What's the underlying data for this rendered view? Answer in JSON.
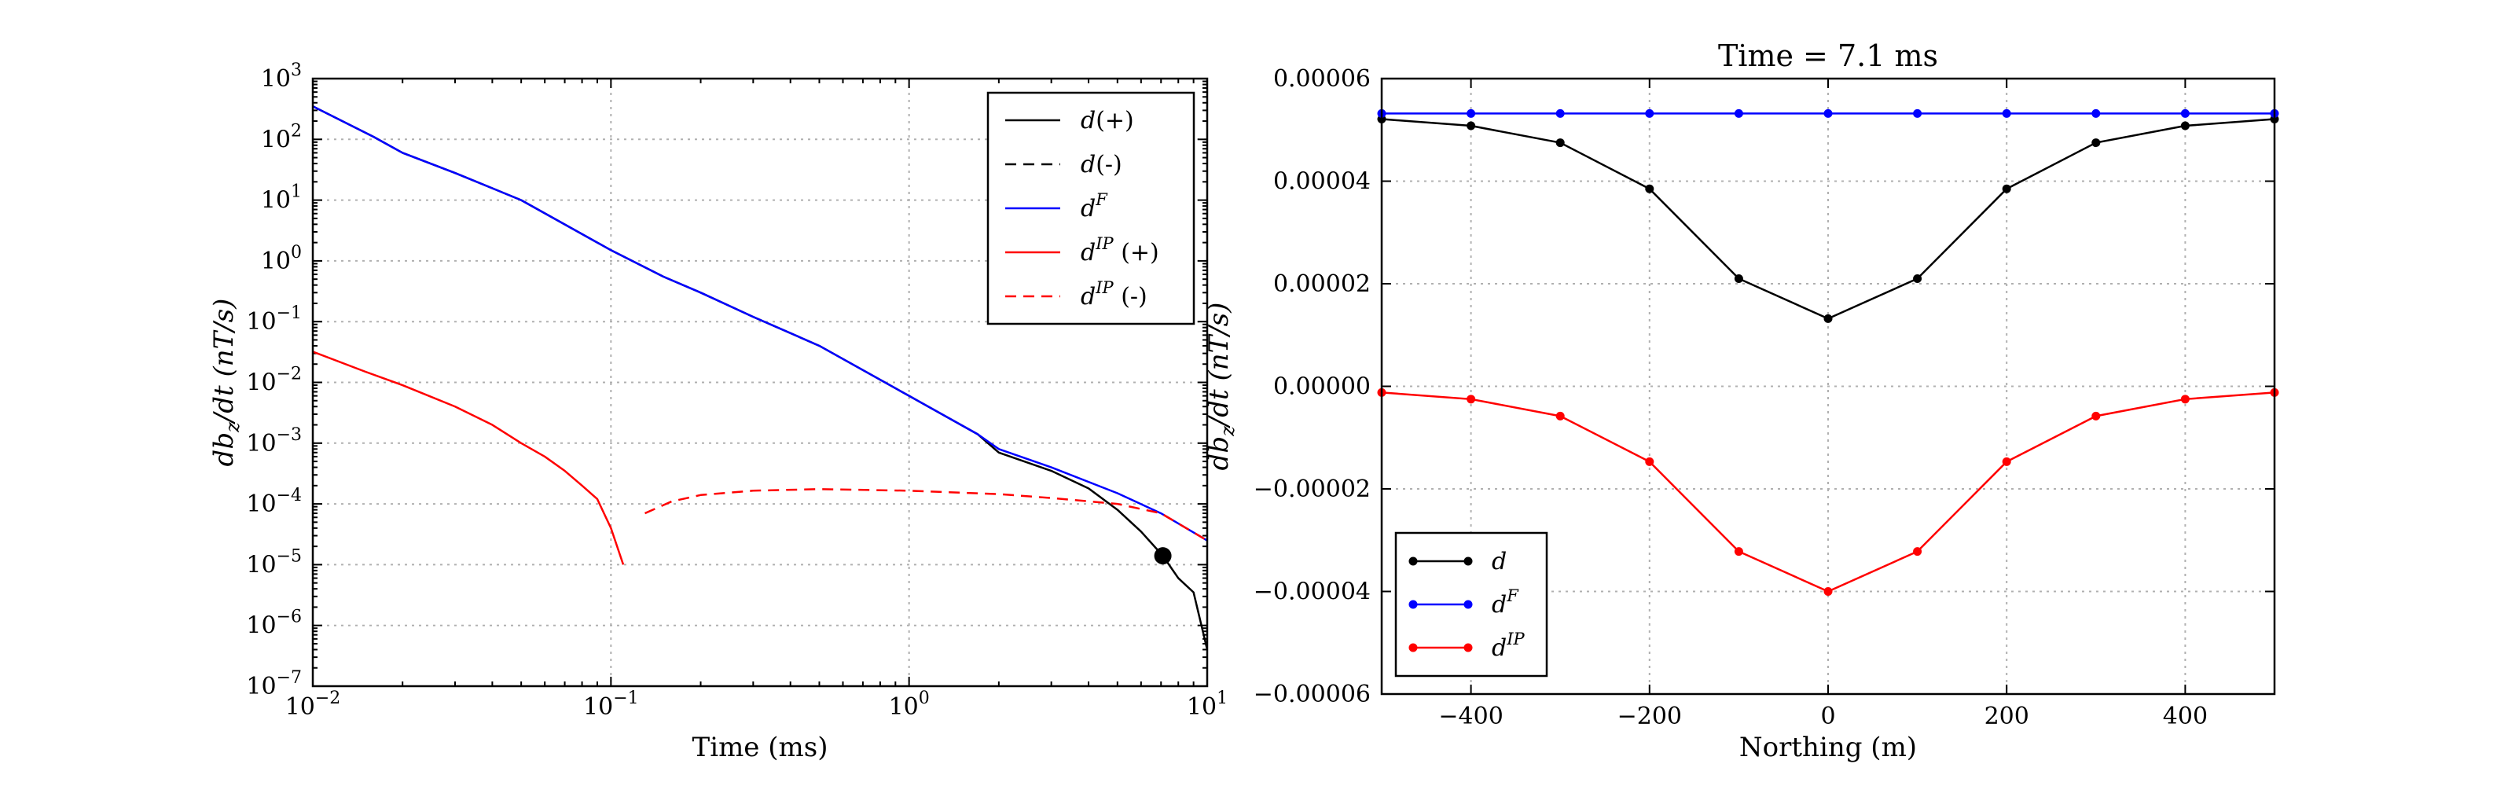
{
  "chart_data": [
    {
      "type": "line",
      "title": "",
      "xlabel": "Time (ms)",
      "ylabel": "db_z/dt (nT/s)",
      "xscale": "log",
      "yscale": "log",
      "xlim": [
        0.01,
        10
      ],
      "ylim": [
        1e-07,
        1000
      ],
      "grid": true,
      "legend_position": "top-right",
      "x_ticks": [
        {
          "v": 0.01,
          "b": "10",
          "e": "−2"
        },
        {
          "v": 0.1,
          "b": "10",
          "e": "−1"
        },
        {
          "v": 1,
          "b": "10",
          "e": "0"
        },
        {
          "v": 10,
          "b": "10",
          "e": "1"
        }
      ],
      "y_ticks": [
        {
          "v": 1e-07,
          "b": "10",
          "e": "−7"
        },
        {
          "v": 1e-06,
          "b": "10",
          "e": "−6"
        },
        {
          "v": 1e-05,
          "b": "10",
          "e": "−5"
        },
        {
          "v": 0.0001,
          "b": "10",
          "e": "−4"
        },
        {
          "v": 0.001,
          "b": "10",
          "e": "−3"
        },
        {
          "v": 0.01,
          "b": "10",
          "e": "−2"
        },
        {
          "v": 0.1,
          "b": "10",
          "e": "−1"
        },
        {
          "v": 1,
          "b": "10",
          "e": "0"
        },
        {
          "v": 10,
          "b": "10",
          "e": "1"
        },
        {
          "v": 100,
          "b": "10",
          "e": "2"
        },
        {
          "v": 1000,
          "b": "10",
          "e": "3"
        }
      ],
      "series": [
        {
          "name": "d(+)",
          "legend": {
            "base": "d",
            "sup": "",
            "suffix": "(+)"
          },
          "color": "#000000",
          "dash": false,
          "x": [
            0.01,
            0.016,
            0.02,
            0.03,
            0.05,
            0.1,
            0.15,
            0.2,
            0.3,
            0.5,
            1,
            1.7,
            2,
            3,
            4,
            5,
            6,
            7.1,
            8,
            9,
            10
          ],
          "y": [
            350,
            110,
            60,
            28,
            10,
            1.5,
            0.55,
            0.3,
            0.12,
            0.04,
            0.006,
            0.0014,
            0.0007,
            0.00035,
            0.00018,
            8e-05,
            3.5e-05,
            1.4e-05,
            6e-06,
            3.5e-06,
            4e-07
          ]
        },
        {
          "name": "d(-)",
          "legend": {
            "base": "d",
            "sup": "",
            "suffix": "(-)"
          },
          "color": "#000000",
          "dash": true,
          "x": [],
          "y": []
        },
        {
          "name": "d^F",
          "legend": {
            "base": "d",
            "sup": "F",
            "suffix": ""
          },
          "color": "#0000ff",
          "dash": false,
          "x": [
            0.01,
            0.016,
            0.02,
            0.03,
            0.05,
            0.1,
            0.15,
            0.2,
            0.3,
            0.5,
            1,
            1.7,
            2,
            3,
            5,
            7,
            10
          ],
          "y": [
            350,
            110,
            60,
            28,
            10,
            1.5,
            0.55,
            0.3,
            0.12,
            0.04,
            0.006,
            0.0014,
            0.0008,
            0.0004,
            0.00015,
            7e-05,
            2.5e-05
          ]
        },
        {
          "name": "d^IP(+)",
          "legend": {
            "base": "d",
            "sup": "IP",
            "suffix": "(+)"
          },
          "color": "#ff0000",
          "dash": false,
          "x": [
            0.01,
            0.015,
            0.02,
            0.03,
            0.04,
            0.05,
            0.06,
            0.07,
            0.08,
            0.09,
            0.1,
            0.11
          ],
          "y": [
            0.032,
            0.015,
            0.009,
            0.004,
            0.002,
            0.001,
            0.0006,
            0.00035,
            0.0002,
            0.00012,
            4e-05,
            1e-05
          ]
        },
        {
          "name": "d^IP(-)",
          "legend": {
            "base": "d",
            "sup": "IP",
            "suffix": "(-)"
          },
          "color": "#ff0000",
          "dash": true,
          "x": [
            0.13,
            0.16,
            0.2,
            0.3,
            0.5,
            1,
            2,
            3,
            5,
            7,
            10
          ],
          "y": [
            7e-05,
            0.00011,
            0.00014,
            0.000165,
            0.000175,
            0.000165,
            0.000145,
            0.000125,
            0.0001,
            7e-05,
            2.5e-05
          ]
        }
      ],
      "annotations": [
        {
          "type": "marker",
          "x": 7.1,
          "y": 1.4e-05,
          "color": "#000000"
        }
      ]
    },
    {
      "type": "line",
      "title": "Time = 7.1 ms",
      "xlabel": "Northing (m)",
      "ylabel": "db_z/dt (nT/s)",
      "xlim": [
        -500,
        500
      ],
      "ylim": [
        -6e-05,
        6e-05
      ],
      "grid": true,
      "legend_position": "bottom-left",
      "x_ticks": [
        {
          "v": -400,
          "label": "−400"
        },
        {
          "v": -200,
          "label": "−200"
        },
        {
          "v": 0,
          "label": "0"
        },
        {
          "v": 200,
          "label": "200"
        },
        {
          "v": 400,
          "label": "400"
        }
      ],
      "y_ticks": [
        {
          "v": -6e-05,
          "label": "−0.00006"
        },
        {
          "v": -4e-05,
          "label": "−0.00004"
        },
        {
          "v": -2e-05,
          "label": "−0.00002"
        },
        {
          "v": 0,
          "label": "0.00000"
        },
        {
          "v": 2e-05,
          "label": "0.00002"
        },
        {
          "v": 4e-05,
          "label": "0.00004"
        },
        {
          "v": 6e-05,
          "label": "0.00006"
        }
      ],
      "x": [
        -500,
        -400,
        -300,
        -200,
        -100,
        0,
        100,
        200,
        300,
        400,
        500
      ],
      "series": [
        {
          "name": "d",
          "legend": {
            "base": "d",
            "sup": "",
            "suffix": ""
          },
          "color": "#000000",
          "y": [
            5.21e-05,
            5.08e-05,
            4.75e-05,
            3.85e-05,
            2.1e-05,
            1.32e-05,
            2.1e-05,
            3.85e-05,
            4.75e-05,
            5.08e-05,
            5.21e-05
          ]
        },
        {
          "name": "d^F",
          "legend": {
            "base": "d",
            "sup": "F",
            "suffix": ""
          },
          "color": "#0000ff",
          "y": [
            5.32e-05,
            5.32e-05,
            5.32e-05,
            5.32e-05,
            5.32e-05,
            5.32e-05,
            5.32e-05,
            5.32e-05,
            5.32e-05,
            5.32e-05,
            5.32e-05
          ]
        },
        {
          "name": "d^IP",
          "legend": {
            "base": "d",
            "sup": "IP",
            "suffix": ""
          },
          "color": "#ff0000",
          "y": [
            -1.2e-06,
            -2.5e-06,
            -5.8e-06,
            -1.47e-05,
            -3.22e-05,
            -4e-05,
            -3.22e-05,
            -1.47e-05,
            -5.8e-06,
            -2.5e-06,
            -1.2e-06
          ]
        }
      ]
    }
  ]
}
